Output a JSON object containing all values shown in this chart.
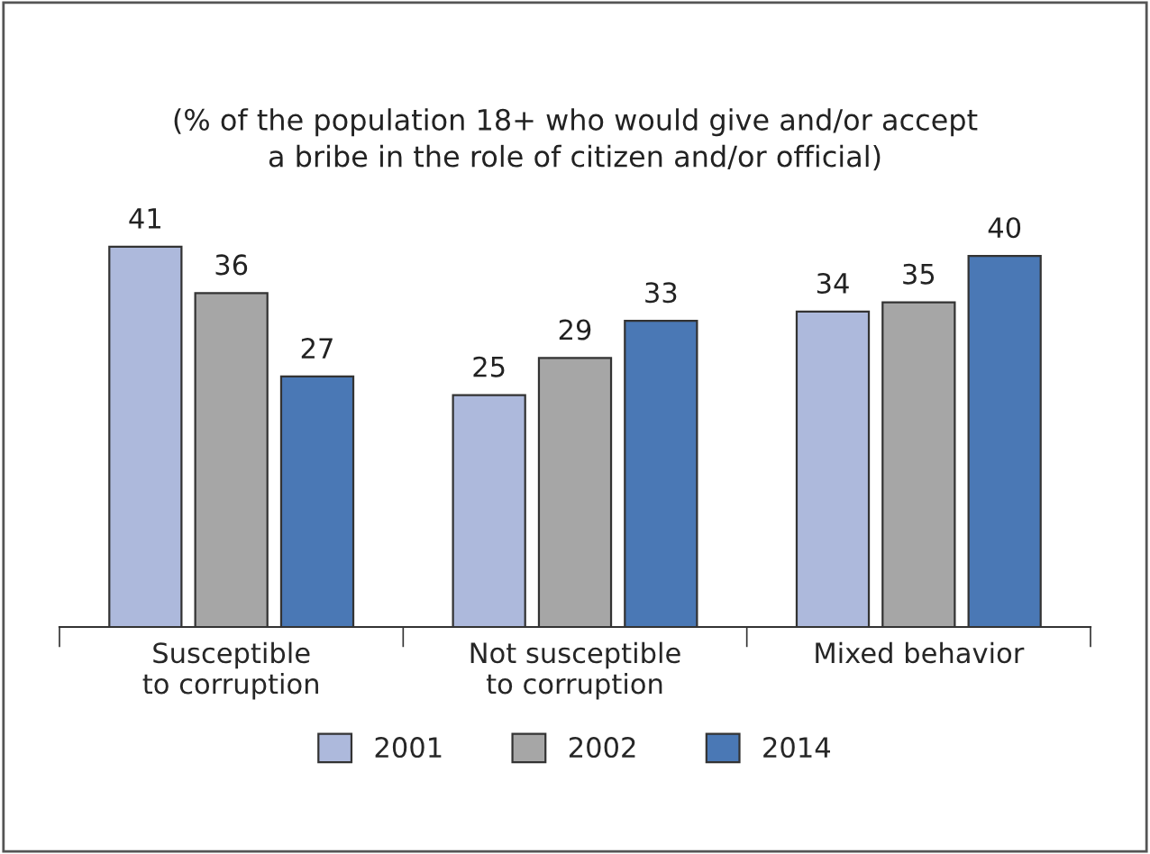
{
  "chart_data": {
    "type": "bar",
    "title": "(% of the population 18+ who would give and/or accept\na bribe in the role of citizen and/or official)",
    "categories": [
      "Susceptible\nto corruption",
      "Not susceptible\nto corruption",
      "Mixed behavior"
    ],
    "series": [
      {
        "name": "2001",
        "color": "#adb9dc",
        "values": [
          41,
          25,
          34
        ]
      },
      {
        "name": "2002",
        "color": "#a6a6a6",
        "values": [
          36,
          29,
          35
        ]
      },
      {
        "name": "2014",
        "color": "#4a78b5",
        "values": [
          27,
          33,
          40
        ]
      }
    ],
    "data_labels": true,
    "legend": "bottom",
    "grid": false
  }
}
